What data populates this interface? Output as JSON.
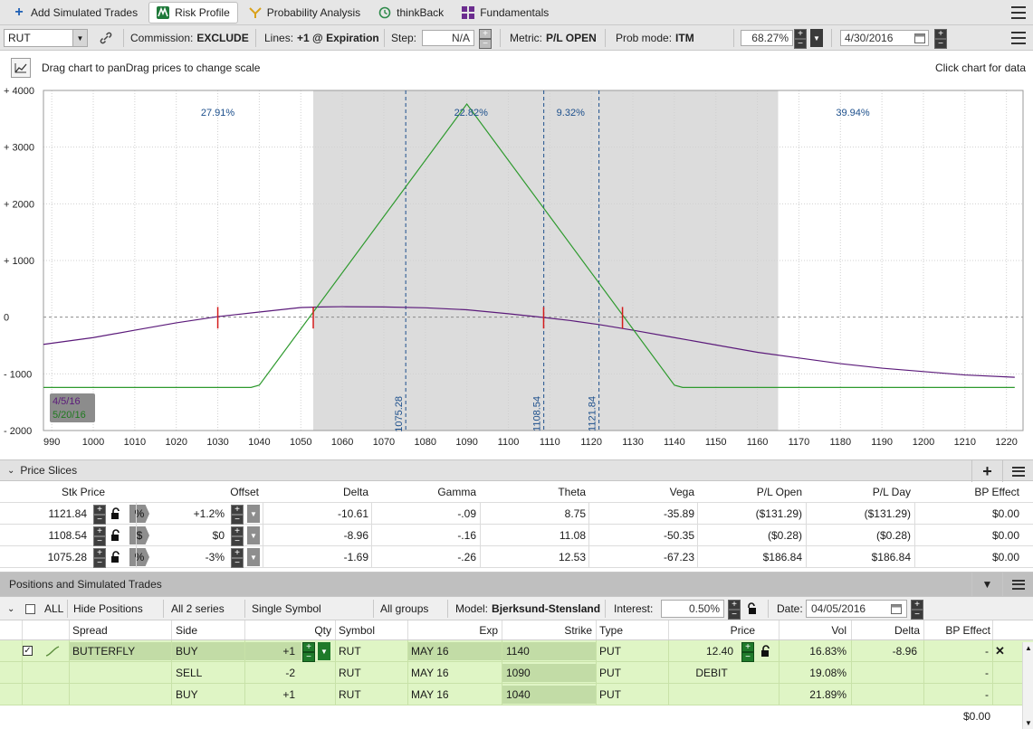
{
  "tabs": [
    {
      "label": "Add Simulated Trades",
      "icon": "plus-icon",
      "active": false
    },
    {
      "label": "Risk Profile",
      "icon": "risk-profile-icon",
      "active": true
    },
    {
      "label": "Probability Analysis",
      "icon": "probability-icon",
      "active": false
    },
    {
      "label": "thinkBack",
      "icon": "thinkback-icon",
      "active": false
    },
    {
      "label": "Fundamentals",
      "icon": "fundamentals-icon",
      "active": false
    }
  ],
  "toolbar": {
    "symbol": "RUT",
    "commission_label": "Commission:",
    "commission_value": "EXCLUDE",
    "lines_label": "Lines:",
    "lines_value": "+1 @ Expiration",
    "step_label": "Step:",
    "step_value": "N/A",
    "metric_label": "Metric:",
    "metric_value": "P/L OPEN",
    "prob_label": "Prob mode:",
    "prob_value": "ITM",
    "pct_value": "68.27%",
    "date_value": "4/30/2016"
  },
  "chart_header": {
    "hint_drag": "Drag chart to pan",
    "hint_scale": "Drag prices to change scale",
    "click_hint": "Click chart for data"
  },
  "chart_data": {
    "type": "line",
    "x_ticks": [
      "990",
      "1000",
      "1010",
      "1020",
      "1030",
      "1040",
      "1050",
      "1060",
      "1070",
      "1080",
      "1090",
      "1100",
      "1110",
      "1120",
      "1130",
      "1140",
      "1150",
      "1160",
      "1170",
      "1180",
      "1190",
      "1200",
      "1210",
      "1220"
    ],
    "y_ticks": [
      "+ 4000",
      "+ 3000",
      "+ 2000",
      "+ 1000",
      "0",
      "- 1000",
      "- 2000"
    ],
    "xlim": [
      988,
      1224
    ],
    "ylim": [
      -2000,
      4000
    ],
    "shaded_range": [
      1053,
      1165
    ],
    "series": [
      {
        "name": "4/5/16",
        "color": "#5b1a7a",
        "x": [
          988,
          1000,
          1010,
          1020,
          1030,
          1040,
          1050,
          1055,
          1060,
          1070,
          1080,
          1090,
          1100,
          1108.5,
          1115,
          1121.8,
          1130,
          1140,
          1150,
          1160,
          1170,
          1180,
          1190,
          1200,
          1210,
          1222
        ],
        "y": [
          -480,
          -360,
          -230,
          -100,
          10,
          90,
          170,
          180,
          185,
          180,
          165,
          130,
          60,
          -5,
          -60,
          -130,
          -230,
          -360,
          -490,
          -620,
          -720,
          -820,
          -900,
          -960,
          -1020,
          -1060
        ]
      },
      {
        "name": "5/20/16",
        "color": "#2e9a2e",
        "x": [
          988,
          1020,
          1030,
          1038,
          1040,
          1090,
          1140,
          1142,
          1160,
          1190,
          1222
        ],
        "y": [
          -1240,
          -1240,
          -1240,
          -1240,
          -1200,
          3760,
          -1200,
          -1240,
          -1240,
          -1240,
          -1240
        ]
      }
    ],
    "prob_labels": [
      {
        "x": 1030,
        "text": "27.91%"
      },
      {
        "x": 1091,
        "text": "22.82%"
      },
      {
        "x": 1115,
        "text": "9.32%"
      },
      {
        "x": 1183,
        "text": "39.94%"
      }
    ],
    "vertical_lines": [
      {
        "x": 1075.28,
        "text": "1075.28"
      },
      {
        "x": 1108.54,
        "text": "1108.54"
      },
      {
        "x": 1121.84,
        "text": "1121.84"
      }
    ],
    "red_markers": [
      1030,
      1053,
      1108.5,
      1127.5
    ],
    "legend": [
      "4/5/16",
      "5/20/16"
    ],
    "legend_placement": "bottom-left"
  },
  "price_slices": {
    "title": "Price Slices",
    "columns": [
      "Stk Price",
      "Offset",
      "Delta",
      "Gamma",
      "Theta",
      "Vega",
      "P/L Open",
      "P/L Day",
      "BP Effect"
    ],
    "rows": [
      {
        "stk": "1121.84",
        "tag": "%",
        "offset": "+1.2%",
        "delta": "-10.61",
        "gamma": "-.09",
        "theta": "8.75",
        "vega": "-35.89",
        "pl_open": "($131.29)",
        "pl_day": "($131.29)",
        "bp": "$0.00"
      },
      {
        "stk": "1108.54",
        "tag": "$",
        "offset": "$0",
        "delta": "-8.96",
        "gamma": "-.16",
        "theta": "11.08",
        "vega": "-50.35",
        "pl_open": "($0.28)",
        "pl_day": "($0.28)",
        "bp": "$0.00"
      },
      {
        "stk": "1075.28",
        "tag": "%",
        "offset": "-3%",
        "delta": "-1.69",
        "gamma": "-.26",
        "theta": "12.53",
        "vega": "-67.23",
        "pl_open": "$186.84",
        "pl_day": "$186.84",
        "bp": "$0.00"
      }
    ]
  },
  "positions": {
    "title": "Positions and Simulated Trades",
    "toolbar": {
      "all_label": "ALL",
      "hide_positions": "Hide Positions",
      "series": "All 2 series",
      "symbol_mode": "Single Symbol",
      "groups": "All groups",
      "model_label": "Model:",
      "model_value": "Bjerksund-Stensland",
      "interest_label": "Interest:",
      "interest_value": "0.50%",
      "date_label": "Date:",
      "date_value": "04/05/2016"
    },
    "columns": [
      "Spread",
      "Side",
      "Qty",
      "Symbol",
      "Exp",
      "Strike",
      "Type",
      "Price",
      "Vol",
      "Delta",
      "BP Effect"
    ],
    "rows": [
      {
        "spread": "BUTTERFLY",
        "side": "BUY",
        "qty": "+1",
        "symbol": "RUT",
        "exp": "MAY 16",
        "strike": "1140",
        "type": "PUT",
        "price": "12.40",
        "vol": "16.83%",
        "delta": "-8.96",
        "bp": "-"
      },
      {
        "spread": "",
        "side": "SELL",
        "qty": "-2",
        "symbol": "RUT",
        "exp": "MAY 16",
        "strike": "1090",
        "type": "PUT",
        "price": "DEBIT",
        "vol": "19.08%",
        "delta": "",
        "bp": "-"
      },
      {
        "spread": "",
        "side": "BUY",
        "qty": "+1",
        "symbol": "RUT",
        "exp": "MAY 16",
        "strike": "1040",
        "type": "PUT",
        "price": "",
        "vol": "21.89%",
        "delta": "",
        "bp": "-"
      }
    ],
    "total_bp": "$0.00"
  }
}
